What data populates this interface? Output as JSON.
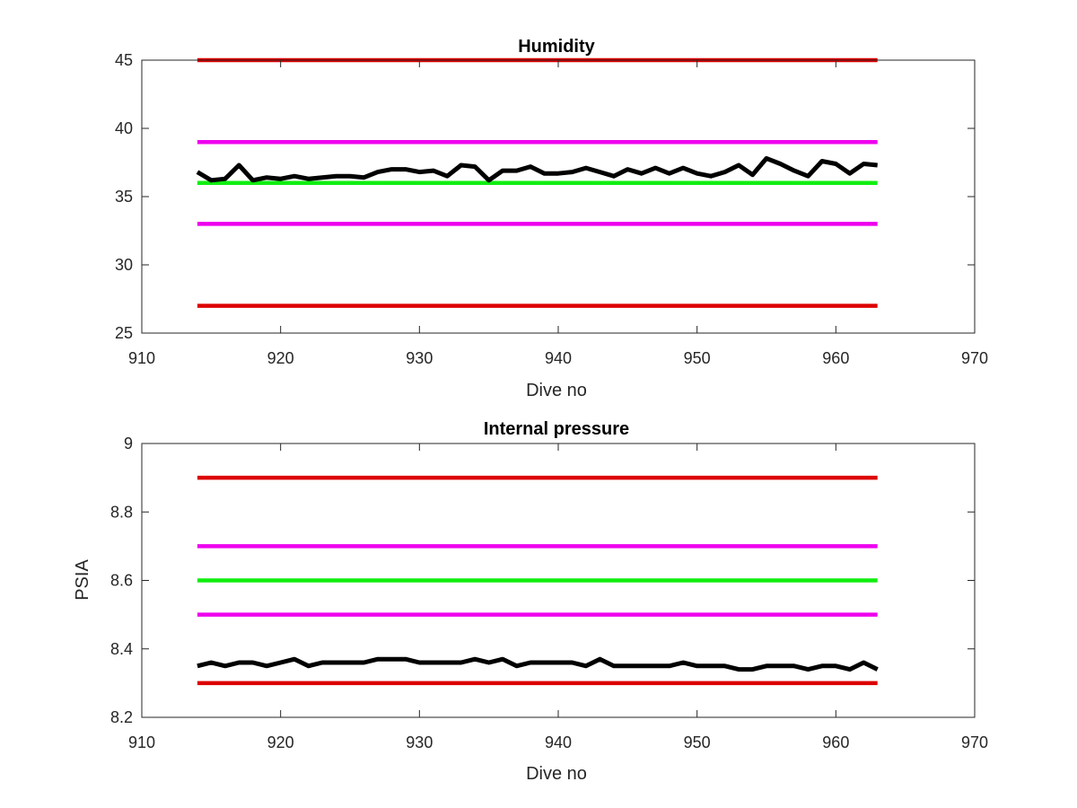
{
  "chart_data": [
    {
      "type": "line",
      "title": "Humidity",
      "xlabel": "Dive no",
      "ylabel": "",
      "xlim": [
        910,
        970
      ],
      "ylim": [
        25,
        45
      ],
      "xticks": [
        910,
        920,
        930,
        940,
        950,
        960,
        970
      ],
      "yticks": [
        25,
        30,
        35,
        40,
        45
      ],
      "grid": false,
      "colors": {
        "limit_red": "#dd0000",
        "limit_magenta": "#ee00ee",
        "target_green": "#11ee11",
        "data_black": "#000000"
      },
      "series": [
        {
          "color": "#dd0000",
          "x": [
            914,
            963
          ],
          "y": [
            45,
            45
          ]
        },
        {
          "color": "#ee00ee",
          "x": [
            914,
            963
          ],
          "y": [
            39,
            39
          ]
        },
        {
          "color": "#11ee11",
          "x": [
            914,
            963
          ],
          "y": [
            36,
            36
          ]
        },
        {
          "color": "#ee00ee",
          "x": [
            914,
            963
          ],
          "y": [
            33,
            33
          ]
        },
        {
          "color": "#dd0000",
          "x": [
            914,
            963
          ],
          "y": [
            27,
            27
          ]
        },
        {
          "color": "#000000",
          "x": [
            914,
            915,
            916,
            917,
            918,
            919,
            920,
            921,
            922,
            923,
            924,
            925,
            926,
            927,
            928,
            929,
            930,
            931,
            932,
            933,
            934,
            935,
            936,
            937,
            938,
            939,
            940,
            941,
            942,
            943,
            944,
            945,
            946,
            947,
            948,
            949,
            950,
            951,
            952,
            953,
            954,
            955,
            956,
            957,
            958,
            959,
            960,
            961,
            962,
            963
          ],
          "y": [
            36.8,
            36.2,
            36.3,
            37.3,
            36.2,
            36.4,
            36.3,
            36.5,
            36.3,
            36.4,
            36.5,
            36.5,
            36.4,
            36.8,
            37.0,
            37.0,
            36.8,
            36.9,
            36.5,
            37.3,
            37.2,
            36.2,
            36.9,
            36.9,
            37.2,
            36.7,
            36.7,
            36.8,
            37.1,
            36.8,
            36.5,
            37.0,
            36.7,
            37.1,
            36.7,
            37.1,
            36.7,
            36.5,
            36.8,
            37.3,
            36.6,
            37.8,
            37.4,
            36.9,
            36.5,
            37.6,
            37.4,
            36.7,
            37.4,
            37.3
          ]
        }
      ]
    },
    {
      "type": "line",
      "title": "Internal pressure",
      "xlabel": "Dive no",
      "ylabel": "PSIA",
      "xlim": [
        910,
        970
      ],
      "ylim": [
        8.2,
        9
      ],
      "xticks": [
        910,
        920,
        930,
        940,
        950,
        960,
        970
      ],
      "yticks": [
        8.2,
        8.4,
        8.6,
        8.8,
        9
      ],
      "grid": false,
      "colors": {
        "limit_red": "#dd0000",
        "limit_magenta": "#ee00ee",
        "target_green": "#11ee11",
        "data_black": "#000000"
      },
      "series": [
        {
          "color": "#dd0000",
          "x": [
            914,
            963
          ],
          "y": [
            8.9,
            8.9
          ]
        },
        {
          "color": "#ee00ee",
          "x": [
            914,
            963
          ],
          "y": [
            8.7,
            8.7
          ]
        },
        {
          "color": "#11ee11",
          "x": [
            914,
            963
          ],
          "y": [
            8.6,
            8.6
          ]
        },
        {
          "color": "#ee00ee",
          "x": [
            914,
            963
          ],
          "y": [
            8.5,
            8.5
          ]
        },
        {
          "color": "#dd0000",
          "x": [
            914,
            963
          ],
          "y": [
            8.3,
            8.3
          ]
        },
        {
          "color": "#000000",
          "x": [
            914,
            915,
            916,
            917,
            918,
            919,
            920,
            921,
            922,
            923,
            924,
            925,
            926,
            927,
            928,
            929,
            930,
            931,
            932,
            933,
            934,
            935,
            936,
            937,
            938,
            939,
            940,
            941,
            942,
            943,
            944,
            945,
            946,
            947,
            948,
            949,
            950,
            951,
            952,
            953,
            954,
            955,
            956,
            957,
            958,
            959,
            960,
            961,
            962,
            963
          ],
          "y": [
            8.35,
            8.36,
            8.35,
            8.36,
            8.36,
            8.35,
            8.36,
            8.37,
            8.35,
            8.36,
            8.36,
            8.36,
            8.36,
            8.37,
            8.37,
            8.37,
            8.36,
            8.36,
            8.36,
            8.36,
            8.37,
            8.36,
            8.37,
            8.35,
            8.36,
            8.36,
            8.36,
            8.36,
            8.35,
            8.37,
            8.35,
            8.35,
            8.35,
            8.35,
            8.35,
            8.36,
            8.35,
            8.35,
            8.35,
            8.34,
            8.34,
            8.35,
            8.35,
            8.35,
            8.34,
            8.35,
            8.35,
            8.34,
            8.36,
            8.34
          ]
        }
      ]
    }
  ]
}
